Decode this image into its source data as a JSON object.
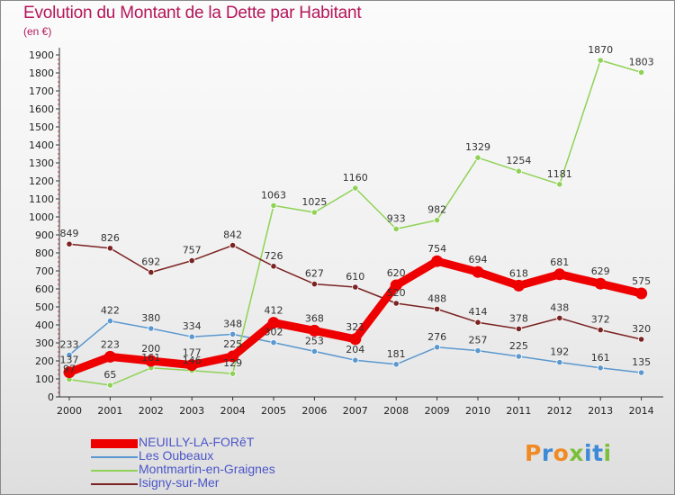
{
  "header": {
    "title": "Evolution du Montant de la Dette par Habitant",
    "unit": "(en €)"
  },
  "brand": {
    "text": "Proxiti",
    "colors": [
      "#f08a22",
      "#3d8ad6",
      "#f08a22",
      "#7bbf3a",
      "#3d8ad6",
      "#3d8ad6",
      "#7bbf3a"
    ]
  },
  "chart_data": {
    "type": "line",
    "title": "Evolution du Montant de la Dette par Habitant",
    "subtitle": "(en €)",
    "xlabel": "",
    "ylabel": "",
    "x": [
      2000,
      2001,
      2002,
      2003,
      2004,
      2005,
      2006,
      2007,
      2008,
      2009,
      2010,
      2011,
      2012,
      2013,
      2014
    ],
    "x_tick_labels": [
      "2000",
      "2001",
      "2002",
      "2003",
      "2004",
      "2005",
      "2006",
      "2007",
      "2008",
      "2009",
      "2010",
      "2011",
      "2012",
      "2013",
      "2014"
    ],
    "ylim": [
      0,
      1900
    ],
    "y_ticks": [
      0,
      100,
      200,
      300,
      400,
      500,
      600,
      700,
      800,
      900,
      1000,
      1100,
      1200,
      1300,
      1400,
      1500,
      1600,
      1700,
      1800,
      1900
    ],
    "grid": false,
    "legend_position": "bottom-left",
    "series": [
      {
        "name": "NEUILLY-LA-FORêT",
        "color": "#ee0000",
        "emphasized": true,
        "values": [
          137,
          223,
          200,
          177,
          225,
          412,
          368,
          321,
          620,
          754,
          694,
          618,
          681,
          629,
          575
        ],
        "labels": [
          "137",
          "223",
          "200",
          "177",
          "225",
          "412",
          "368",
          "321",
          "620",
          "754",
          "694",
          "618",
          "681",
          "629",
          "575"
        ]
      },
      {
        "name": "Les Oubeaux",
        "color": "#5a98cf",
        "emphasized": false,
        "values": [
          233,
          422,
          380,
          334,
          348,
          302,
          253,
          204,
          181,
          276,
          257,
          225,
          192,
          161,
          135
        ],
        "labels": [
          "233",
          "422",
          "380",
          "334",
          "348",
          "302",
          "253",
          "204",
          "181",
          "276",
          "257",
          "225",
          "192",
          "161",
          "135"
        ]
      },
      {
        "name": "Montmartin-en-Graignes",
        "color": "#8fd257",
        "emphasized": false,
        "values": [
          97,
          65,
          161,
          146,
          129,
          1063,
          1025,
          1160,
          933,
          982,
          1329,
          1254,
          1181,
          1870,
          1803
        ],
        "labels": [
          "97",
          "65",
          "161",
          "146",
          "129",
          "1063",
          "1025",
          "1160",
          "933",
          "982",
          "1329",
          "1254",
          "1181",
          "1870",
          "1803"
        ]
      },
      {
        "name": "Isigny-sur-Mer",
        "color": "#7b2222",
        "emphasized": false,
        "values": [
          849,
          826,
          692,
          757,
          842,
          726,
          627,
          610,
          520,
          488,
          414,
          378,
          438,
          372,
          320
        ],
        "labels": [
          "849",
          "826",
          "692",
          "757",
          "842",
          "726",
          "627",
          "610",
          "520",
          "488",
          "414",
          "378",
          "438",
          "372",
          "320"
        ]
      }
    ]
  }
}
